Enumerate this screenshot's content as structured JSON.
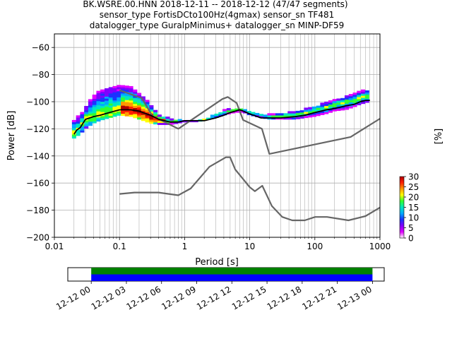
{
  "title_lines": [
    "BK.WSRE.00.HNN   2018-12-11 -- 2018-12-12  (47/47 segments)",
    "sensor_type FortisDCto100Hz(4gmax) sensor_sn TF481",
    "datalogger_type GuralpMinimus+ datalogger_sn MINP-DF59"
  ],
  "chart_data": [
    {
      "type": "heatmap",
      "xlabel": "Period [s]",
      "ylabel": "Power [dB]",
      "xscale": "log",
      "xlim": [
        0.01,
        1000
      ],
      "ylim": [
        -200,
        -50
      ],
      "x_ticks": [
        {
          "v": 0.01,
          "label": "0.01"
        },
        {
          "v": 0.1,
          "label": "0.1"
        },
        {
          "v": 1,
          "label": "1"
        },
        {
          "v": 10,
          "label": "10"
        },
        {
          "v": 100,
          "label": "100"
        },
        {
          "v": 1000,
          "label": "1000"
        }
      ],
      "y_ticks": [
        {
          "v": -60,
          "label": "−60"
        },
        {
          "v": -80,
          "label": "−80"
        },
        {
          "v": -100,
          "label": "−100"
        },
        {
          "v": -120,
          "label": "−120"
        },
        {
          "v": -140,
          "label": "−140"
        },
        {
          "v": -160,
          "label": "−160"
        },
        {
          "v": -180,
          "label": "−180"
        },
        {
          "v": -200,
          "label": "−200"
        }
      ],
      "grid": true,
      "colorbar": {
        "label": "[%]",
        "range": [
          0,
          30
        ],
        "ticks": [
          "0",
          "5",
          "10",
          "15",
          "20",
          "25",
          "30"
        ],
        "colors": [
          "#ffffff",
          "#e000ff",
          "#8000ff",
          "#1a33ff",
          "#00a8ff",
          "#00e6c0",
          "#30ff30",
          "#ffff00",
          "#ff9900",
          "#ff2000",
          "#b00000"
        ]
      },
      "density_envelope": {
        "periods": [
          0.02,
          0.025,
          0.03,
          0.04,
          0.05,
          0.07,
          0.1,
          0.15,
          0.2,
          0.3,
          0.4,
          0.6,
          0.8,
          1.0,
          1.5,
          2,
          3,
          4,
          5,
          6,
          7,
          8,
          10,
          15,
          20,
          30,
          50,
          70,
          100,
          150,
          200,
          300,
          400,
          500,
          600,
          700
        ],
        "upper": [
          -114,
          -110,
          -104,
          -96,
          -92,
          -90,
          -89,
          -90,
          -94,
          -102,
          -110,
          -113,
          -114,
          -114,
          -114,
          -113,
          -110,
          -107,
          -106,
          -106,
          -105,
          -106,
          -108,
          -110,
          -110,
          -109,
          -108,
          -106,
          -104,
          -101,
          -99,
          -97,
          -95,
          -93,
          -92,
          -92
        ],
        "lower": [
          -127,
          -124,
          -120,
          -116,
          -114,
          -112,
          -110,
          -111,
          -113,
          -116,
          -117,
          -117,
          -116,
          -115,
          -115,
          -114,
          -112,
          -110,
          -109,
          -108,
          -108,
          -108,
          -110,
          -112,
          -113,
          -113,
          -113,
          -112,
          -111,
          -109,
          -107,
          -106,
          -104,
          -102,
          -101,
          -100
        ],
        "mode": [
          -124,
          -119,
          -113,
          -111,
          -109,
          -108,
          -106,
          -106,
          -108,
          -112,
          -114,
          -115,
          -115,
          -114,
          -114,
          -114,
          -111,
          -109,
          -107,
          -106,
          -106,
          -107,
          -109,
          -111,
          -112,
          -111,
          -111,
          -109,
          -107,
          -105,
          -103,
          -101,
          -100,
          -98,
          -97,
          -97
        ],
        "high_density_band": [
          0.1,
          0.5
        ]
      },
      "mode_curve": {
        "x": [
          0.02,
          0.022,
          0.025,
          0.03,
          0.04,
          0.05,
          0.07,
          0.1,
          0.15,
          0.2,
          0.3,
          0.4,
          0.6,
          0.8,
          1.0,
          1.5,
          2,
          3,
          4,
          5,
          6,
          7,
          8,
          10,
          15,
          20,
          30,
          50,
          70,
          100,
          150,
          200,
          300,
          400,
          500,
          600,
          700
        ],
        "y": [
          -124,
          -121,
          -119,
          -113,
          -111,
          -110,
          -108,
          -106,
          -106,
          -107,
          -110,
          -113,
          -115,
          -115,
          -114,
          -114,
          -114,
          -112,
          -110,
          -108,
          -107,
          -106,
          -107,
          -109,
          -112,
          -112,
          -112,
          -111,
          -110,
          -108,
          -106,
          -105,
          -103,
          -102,
          -100,
          -99,
          -99
        ]
      },
      "noise_models": [
        {
          "x": [
            0.1,
            0.17,
            0.4,
            0.8,
            1.24,
            2.4,
            4.3,
            5.0,
            6.0,
            10,
            12,
            15.6,
            21.9,
            31.6,
            45,
            70,
            101,
            154,
            328,
            600,
            1000
          ],
          "y": [
            -168,
            -167,
            -167,
            -169,
            -164,
            -148,
            -141,
            -141,
            -150,
            -163,
            -166,
            -162,
            -177,
            -185,
            -187.5,
            -187.5,
            -185,
            -185,
            -187.5,
            -184.4,
            -178
          ]
        },
        {
          "x": [
            0.1,
            0.22,
            0.32,
            0.8,
            3.8,
            4.6,
            6.3,
            7.9,
            15.4,
            20,
            354.8,
            1000
          ],
          "y": [
            -91.5,
            -97.4,
            -110.5,
            -120,
            -98,
            -96.5,
            -101,
            -113.5,
            -120,
            -138.5,
            -126,
            -112.5
          ]
        }
      ]
    },
    {
      "type": "timeline",
      "x_ticks": [
        "12-12 00",
        "12-12 03",
        "12-12 06",
        "12-12 09",
        "12-12 12",
        "12-12 15",
        "12-12 18",
        "12-12 21",
        "12-13 00"
      ],
      "start": "12-11 22:00",
      "end": "12-13 01:00",
      "coverage": [
        {
          "from": "12-12 00:00",
          "to": "12-13 00:00",
          "color": "#008000"
        },
        {
          "from": "12-12 00:00",
          "to": "12-13 00:00",
          "color": "#0000ff"
        }
      ]
    }
  ]
}
